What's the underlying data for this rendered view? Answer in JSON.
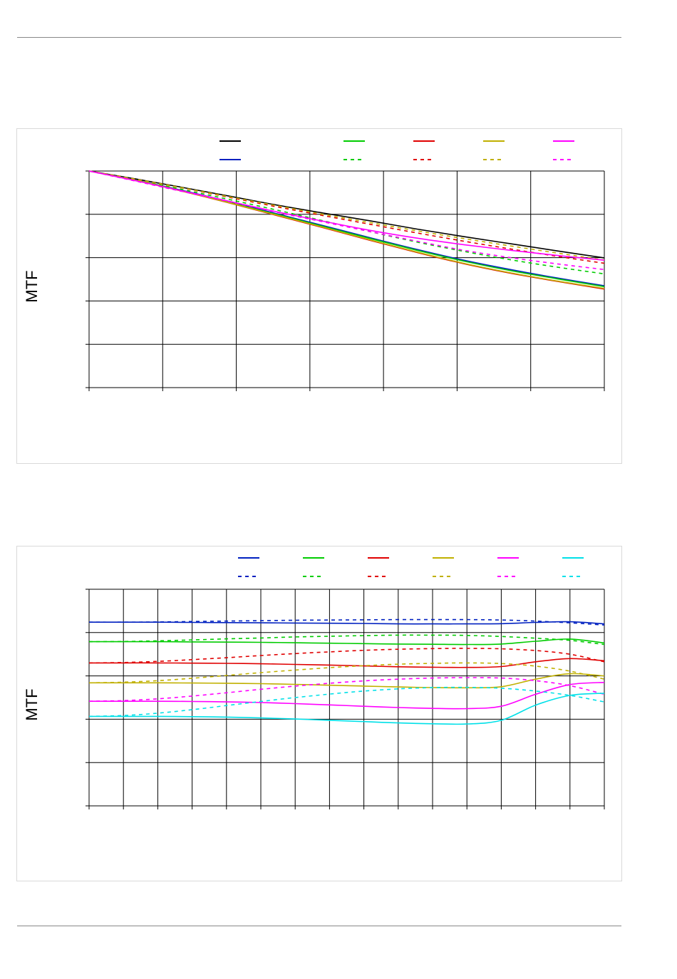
{
  "chart_data": [
    {
      "type": "line",
      "ylabel": "MTF",
      "xlabel": "",
      "x_divisions": 7,
      "y_divisions": 5,
      "grid": true,
      "legend_position": "top",
      "series": [
        {
          "color": "#000000",
          "dash": false,
          "values": [
            1.0,
            0.963,
            0.924,
            0.884,
            0.843,
            0.806,
            0.77,
            0.732,
            0.697,
            0.664,
            0.631,
            0.599
          ]
        },
        {
          "color": "#0020c0",
          "dash": false,
          "values": [
            1.0,
            0.958,
            0.91,
            0.858,
            0.803,
            0.748,
            0.692,
            0.638,
            0.588,
            0.545,
            0.506,
            0.47
          ]
        },
        {
          "color": "#00cc00",
          "dash": false,
          "values": [
            1.0,
            0.957,
            0.908,
            0.855,
            0.8,
            0.744,
            0.688,
            0.634,
            0.584,
            0.54,
            0.502,
            0.466
          ]
        },
        {
          "color": "#00cc00",
          "dash": true,
          "values": [
            1.0,
            0.958,
            0.914,
            0.868,
            0.82,
            0.77,
            0.72,
            0.672,
            0.629,
            0.59,
            0.556,
            0.525
          ]
        },
        {
          "color": "#e00000",
          "dash": false,
          "values": [
            1.0,
            0.956,
            0.906,
            0.852,
            0.795,
            0.738,
            0.68,
            0.624,
            0.572,
            0.528,
            0.49,
            0.455
          ]
        },
        {
          "color": "#e00000",
          "dash": true,
          "values": [
            1.0,
            0.962,
            0.921,
            0.878,
            0.835,
            0.794,
            0.754,
            0.714,
            0.676,
            0.64,
            0.606,
            0.574
          ]
        },
        {
          "color": "#c0b000",
          "dash": false,
          "values": [
            1.0,
            0.957,
            0.907,
            0.853,
            0.797,
            0.74,
            0.682,
            0.626,
            0.574,
            0.53,
            0.492,
            0.458
          ]
        },
        {
          "color": "#c0b000",
          "dash": true,
          "values": [
            1.0,
            0.962,
            0.922,
            0.881,
            0.84,
            0.8,
            0.762,
            0.724,
            0.688,
            0.654,
            0.621,
            0.589
          ]
        },
        {
          "color": "#ff00ff",
          "dash": false,
          "values": [
            1.0,
            0.955,
            0.908,
            0.86,
            0.812,
            0.768,
            0.726,
            0.69,
            0.66,
            0.634,
            0.61,
            0.588
          ]
        },
        {
          "color": "#ff00ff",
          "dash": true,
          "values": [
            1.0,
            0.953,
            0.905,
            0.858,
            0.81,
            0.765,
            0.72,
            0.676,
            0.634,
            0.6,
            0.571,
            0.545
          ]
        }
      ],
      "legend": [
        {
          "color": "#000000",
          "dash": false
        },
        {
          "color": "#00cc00",
          "dash": false
        },
        {
          "color": "#e00000",
          "dash": false
        },
        {
          "color": "#c0b000",
          "dash": false
        },
        {
          "color": "#ff00ff",
          "dash": false
        },
        {
          "color": "#0020c0",
          "dash": false
        },
        {
          "color": "#00cc00",
          "dash": true
        },
        {
          "color": "#e00000",
          "dash": true
        },
        {
          "color": "#c0b000",
          "dash": true
        },
        {
          "color": "#ff00ff",
          "dash": true
        }
      ]
    },
    {
      "type": "line",
      "ylabel": "MTF",
      "xlabel": "",
      "x_divisions": 15,
      "y_divisions": 5,
      "grid": true,
      "legend_position": "top",
      "series": [
        {
          "color": "#0020c0",
          "dash": false,
          "values": [
            0.848,
            0.848,
            0.848,
            0.847,
            0.846,
            0.845,
            0.844,
            0.843,
            0.842,
            0.84,
            0.84,
            0.84,
            0.841,
            0.847,
            0.85,
            0.84
          ]
        },
        {
          "color": "#0020c0",
          "dash": true,
          "values": [
            0.848,
            0.848,
            0.849,
            0.851,
            0.853,
            0.855,
            0.857,
            0.858,
            0.859,
            0.86,
            0.86,
            0.86,
            0.858,
            0.853,
            0.845,
            0.835
          ]
        },
        {
          "color": "#00cc00",
          "dash": false,
          "values": [
            0.758,
            0.758,
            0.758,
            0.757,
            0.756,
            0.755,
            0.753,
            0.751,
            0.749,
            0.747,
            0.746,
            0.745,
            0.747,
            0.76,
            0.77,
            0.752
          ]
        },
        {
          "color": "#00cc00",
          "dash": true,
          "values": [
            0.758,
            0.759,
            0.762,
            0.766,
            0.771,
            0.775,
            0.78,
            0.783,
            0.786,
            0.788,
            0.788,
            0.787,
            0.782,
            0.774,
            0.764,
            0.745
          ]
        },
        {
          "color": "#e00000",
          "dash": false,
          "values": [
            0.66,
            0.66,
            0.66,
            0.659,
            0.658,
            0.656,
            0.653,
            0.65,
            0.646,
            0.642,
            0.64,
            0.639,
            0.643,
            0.665,
            0.68,
            0.67
          ]
        },
        {
          "color": "#e00000",
          "dash": true,
          "values": [
            0.66,
            0.662,
            0.667,
            0.675,
            0.684,
            0.694,
            0.703,
            0.711,
            0.718,
            0.723,
            0.726,
            0.727,
            0.725,
            0.717,
            0.7,
            0.665
          ]
        },
        {
          "color": "#c0b000",
          "dash": false,
          "values": [
            0.568,
            0.568,
            0.568,
            0.567,
            0.566,
            0.564,
            0.561,
            0.557,
            0.553,
            0.549,
            0.546,
            0.545,
            0.55,
            0.585,
            0.61,
            0.6
          ]
        },
        {
          "color": "#c0b000",
          "dash": true,
          "values": [
            0.568,
            0.571,
            0.578,
            0.589,
            0.602,
            0.615,
            0.627,
            0.638,
            0.647,
            0.654,
            0.658,
            0.66,
            0.657,
            0.645,
            0.622,
            0.585
          ]
        },
        {
          "color": "#ff00ff",
          "dash": false,
          "values": [
            0.483,
            0.483,
            0.483,
            0.482,
            0.48,
            0.477,
            0.472,
            0.466,
            0.46,
            0.454,
            0.45,
            0.449,
            0.46,
            0.515,
            0.56,
            0.57
          ]
        },
        {
          "color": "#ff00ff",
          "dash": true,
          "values": [
            0.483,
            0.486,
            0.494,
            0.507,
            0.522,
            0.538,
            0.553,
            0.566,
            0.577,
            0.585,
            0.59,
            0.592,
            0.59,
            0.578,
            0.555,
            0.515
          ]
        },
        {
          "color": "#00e0e8",
          "dash": false,
          "values": [
            0.413,
            0.413,
            0.413,
            0.412,
            0.41,
            0.406,
            0.401,
            0.395,
            0.389,
            0.383,
            0.379,
            0.378,
            0.395,
            0.465,
            0.51,
            0.52
          ]
        },
        {
          "color": "#00e0e8",
          "dash": true,
          "values": [
            0.413,
            0.417,
            0.428,
            0.444,
            0.463,
            0.482,
            0.5,
            0.516,
            0.53,
            0.54,
            0.546,
            0.547,
            0.543,
            0.53,
            0.51,
            0.48
          ]
        }
      ],
      "legend": [
        {
          "color": "#0020c0",
          "dash": false
        },
        {
          "color": "#00cc00",
          "dash": false
        },
        {
          "color": "#e00000",
          "dash": false
        },
        {
          "color": "#c0b000",
          "dash": false
        },
        {
          "color": "#ff00ff",
          "dash": false
        },
        {
          "color": "#00e0e8",
          "dash": false
        },
        {
          "color": "#0020c0",
          "dash": true
        },
        {
          "color": "#00cc00",
          "dash": true
        },
        {
          "color": "#e00000",
          "dash": true
        },
        {
          "color": "#c0b000",
          "dash": true
        },
        {
          "color": "#ff00ff",
          "dash": true
        },
        {
          "color": "#00e0e8",
          "dash": true
        }
      ]
    }
  ]
}
